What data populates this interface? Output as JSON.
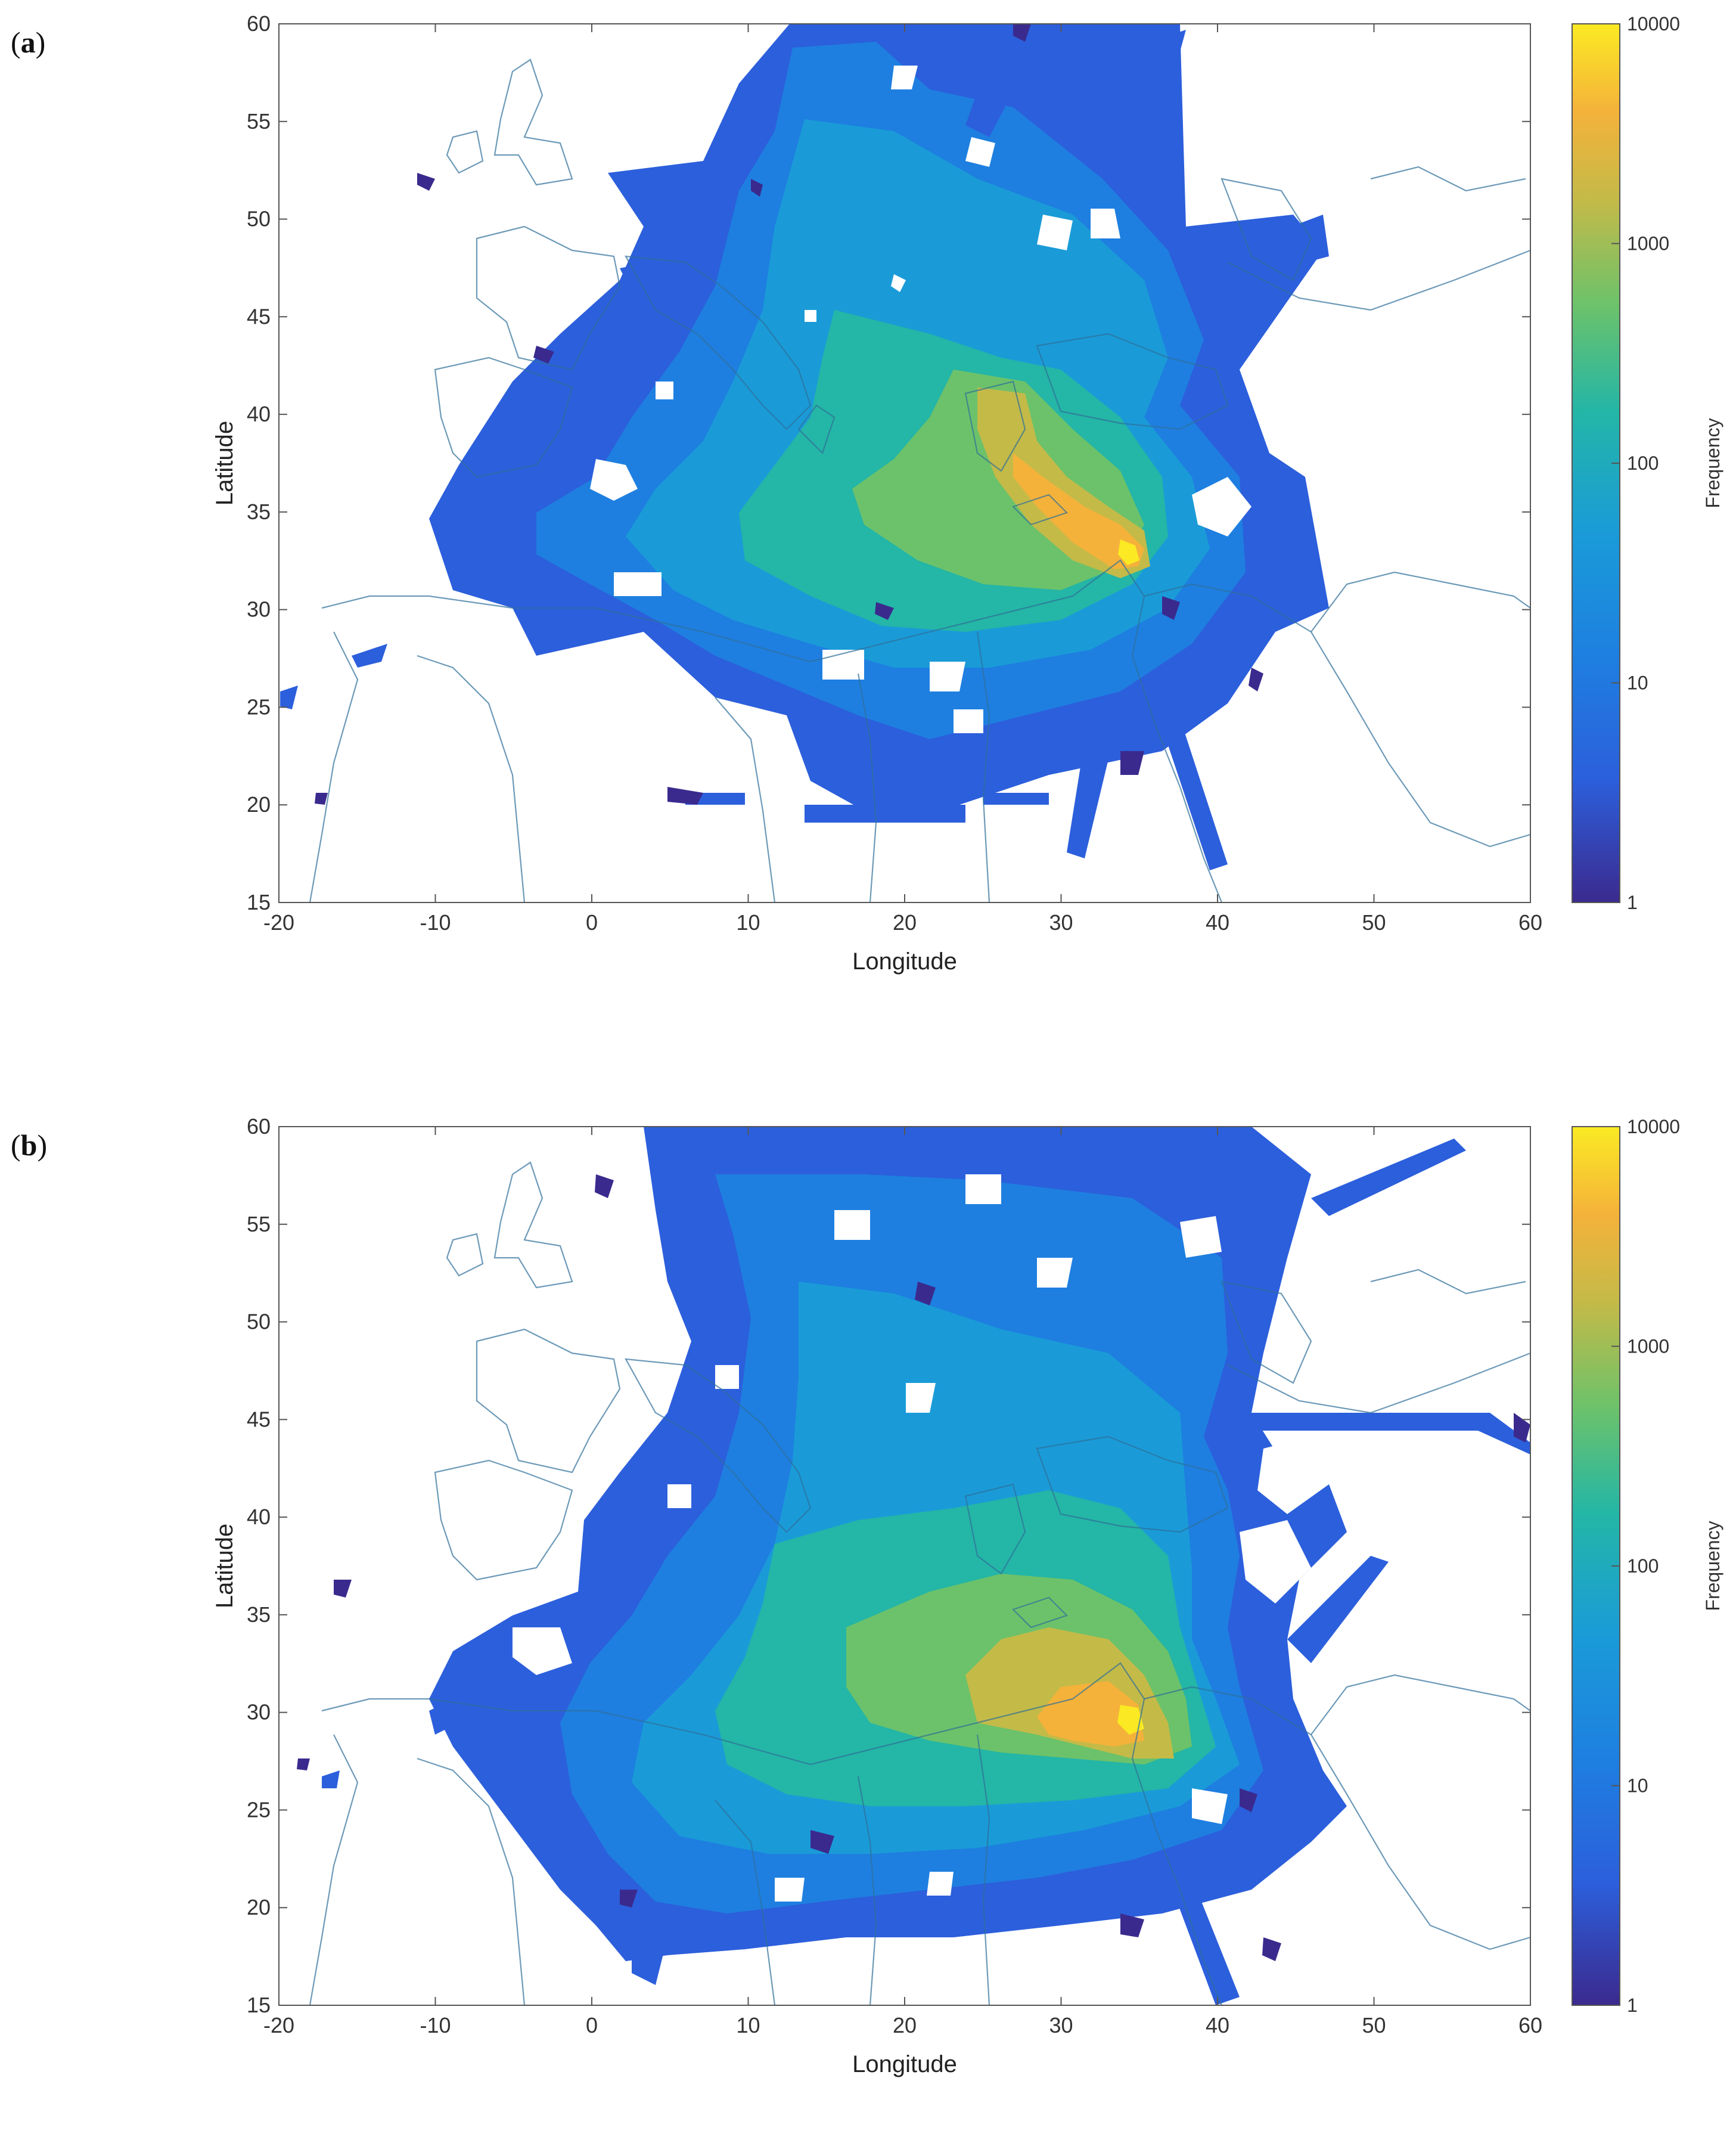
{
  "figure": {
    "panels": [
      {
        "id": "a",
        "label_open": "(",
        "label_letter": "a",
        "label_close": ")",
        "xlabel": "Longitude",
        "ylabel": "Latitude",
        "colorbar_label": "Frequency",
        "xticks": [
          "-20",
          "-10",
          "0",
          "10",
          "20",
          "30",
          "40",
          "50",
          "60"
        ],
        "yticks": [
          "15",
          "20",
          "25",
          "30",
          "35",
          "40",
          "45",
          "50",
          "55",
          "60"
        ],
        "cbticks": [
          "1",
          "10",
          "100",
          "1000",
          "10000"
        ]
      },
      {
        "id": "b",
        "label_open": "(",
        "label_letter": "b",
        "label_close": ")",
        "xlabel": "Longitude",
        "ylabel": "Latitude",
        "colorbar_label": "Frequency",
        "xticks": [
          "-20",
          "-10",
          "0",
          "10",
          "20",
          "30",
          "40",
          "50",
          "60"
        ],
        "yticks": [
          "15",
          "20",
          "25",
          "30",
          "35",
          "40",
          "45",
          "50",
          "55",
          "60"
        ],
        "cbticks": [
          "1",
          "10",
          "100",
          "1000",
          "10000"
        ]
      }
    ]
  },
  "chart_data": [
    {
      "type": "heatmap",
      "panel": "a",
      "xlabel": "Longitude",
      "ylabel": "Latitude",
      "xlim": [
        -20,
        60
      ],
      "ylim": [
        15,
        60
      ],
      "colorbar": {
        "label": "Frequency",
        "scale": "log",
        "range": [
          1,
          10000
        ],
        "ticks": [
          1,
          10,
          100,
          1000,
          10000
        ]
      },
      "colormap": [
        "#3b2a8e",
        "#2c5fdc",
        "#1a9bd8",
        "#24b6a6",
        "#6cc26a",
        "#c4ba48",
        "#f4b23a",
        "#fbea23"
      ],
      "peak": {
        "lon": 35,
        "lat": 32.5,
        "value_approx": 3000
      },
      "hotspots": [
        {
          "lon": 35,
          "lat": 32.5,
          "level": "orange"
        },
        {
          "lon": 30,
          "lat": 34.5,
          "level": "orange"
        },
        {
          "lon": 26,
          "lat": 38.5,
          "level": "yellow-green"
        }
      ]
    },
    {
      "type": "heatmap",
      "panel": "b",
      "xlabel": "Longitude",
      "ylabel": "Latitude",
      "xlim": [
        -20,
        60
      ],
      "ylim": [
        15,
        60
      ],
      "colorbar": {
        "label": "Frequency",
        "scale": "log",
        "range": [
          1,
          10000
        ],
        "ticks": [
          1,
          10,
          100,
          1000,
          10000
        ]
      },
      "colormap": [
        "#3b2a8e",
        "#2c5fdc",
        "#1a9bd8",
        "#24b6a6",
        "#6cc26a",
        "#c4ba48",
        "#f4b23a",
        "#fbea23"
      ],
      "peak": {
        "lon": 36,
        "lat": 32,
        "value_approx": 3000
      },
      "hotspots": [
        {
          "lon": 36,
          "lat": 32,
          "level": "orange"
        },
        {
          "lon": 32,
          "lat": 33.5,
          "level": "orange"
        },
        {
          "lon": 26,
          "lat": 38.5,
          "level": "yellow-green"
        },
        {
          "lon": 38,
          "lat": 30.5,
          "level": "yellow-green"
        }
      ]
    }
  ]
}
